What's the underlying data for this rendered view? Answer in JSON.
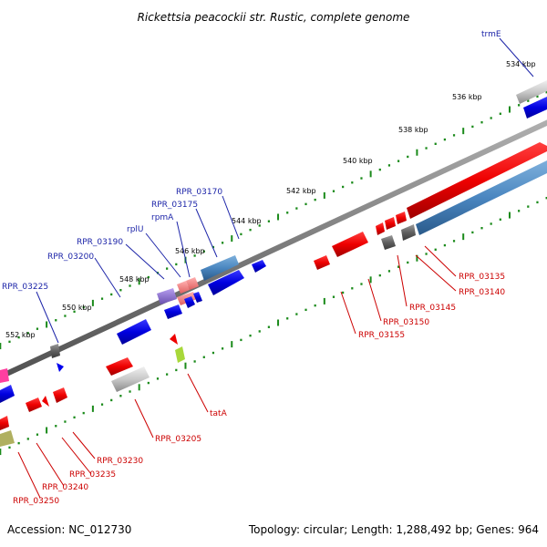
{
  "title": "Rickettsia peacockii str. Rustic, complete genome",
  "footer": {
    "accession": "Accession: NC_012730",
    "summary": "Topology: circular; Length: 1,288,492 bp; Genes: 964"
  },
  "ticks": [
    {
      "label": "534 kbp"
    },
    {
      "label": "536 kbp"
    },
    {
      "label": "538 kbp"
    },
    {
      "label": "540 kbp"
    },
    {
      "label": "542 kbp"
    },
    {
      "label": "544 kbp"
    },
    {
      "label": "546 kbp"
    },
    {
      "label": "548 kbp"
    },
    {
      "label": "550 kbp"
    },
    {
      "label": "552 kbp"
    }
  ],
  "gene_labels": {
    "trmE": "trmE",
    "rpr03170": "RPR_03170",
    "rpr03175": "RPR_03175",
    "rpmA": "rpmA",
    "rplU": "rplU",
    "rpr03190": "RPR_03190",
    "rpr03200": "RPR_03200",
    "rpr03225": "RPR_03225",
    "rpr03135": "RPR_03135",
    "rpr03140": "RPR_03140",
    "rpr03145": "RPR_03145",
    "rpr03150": "RPR_03150",
    "rpr03155": "RPR_03155",
    "tatA": "tatA",
    "rpr03205": "RPR_03205",
    "rpr03230": "RPR_03230",
    "rpr03235": "RPR_03235",
    "rpr03240": "RPR_03240",
    "rpr03250": "RPR_03250"
  },
  "colors": {
    "forward_cds": "#0000ee",
    "reverse_cds": "#ee0000",
    "rna_forward": "#4a86c0",
    "rna_reverse": "#5a8ec8",
    "tick": "#1a8a1a",
    "backbone": "#707070",
    "label_blue": "#1c24a8",
    "label_red": "#cc0000"
  }
}
